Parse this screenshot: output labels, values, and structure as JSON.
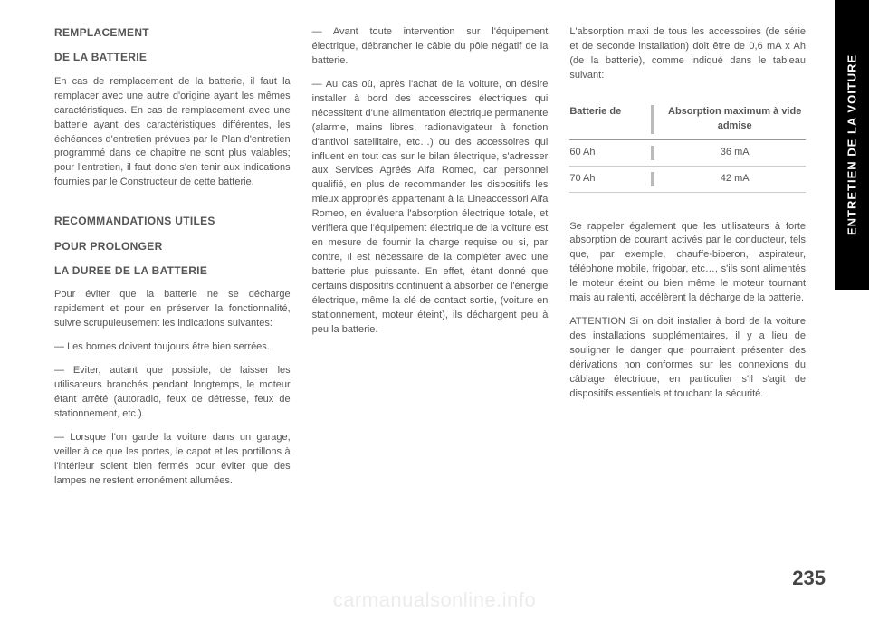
{
  "side_tab": "ENTRETIEN DE LA VOITURE",
  "page_number": "235",
  "watermark": "carmanualsonline.info",
  "colors": {
    "text": "#555555",
    "tab_bg": "#000000",
    "tab_fg": "#ffffff",
    "watermark": "rgba(0,0,0,0.08)",
    "rule": "#cccccc"
  },
  "col1": {
    "h1a": "REMPLACEMENT",
    "h1b": "DE LA BATTERIE",
    "p1": "En cas de remplacement de la batterie, il faut la remplacer avec une autre d'origine ayant les mêmes caractéristiques. En cas de remplacement avec une batterie ayant des caractéristiques différentes, les échéances d'entretien prévues par le Plan d'entretien programmé dans ce chapitre ne sont plus valables; pour l'entretien, il faut donc s'en tenir aux indications fournies par le Constructeur de cette batterie.",
    "h2a": "RECOMMANDATIONS UTILES",
    "h2b": "POUR PROLONGER",
    "h2c": "LA DUREE DE LA BATTERIE",
    "p2": "Pour éviter que la batterie ne se décharge rapidement et pour en préserver la fonctionnalité, suivre scrupuleusement les indications suivantes:",
    "p3": "Les bornes doivent toujours être bien serrées.",
    "p4": "Eviter, autant que possible, de laisser les utilisateurs branchés pendant longtemps, le moteur étant arrêté (autoradio, feux de détresse, feux de stationnement, etc.).",
    "p5": "Lorsque l'on garde la voiture dans un garage, veiller à ce que les portes, le capot et les portillons à l'intérieur soient bien fermés pour éviter que des lampes ne restent erronément allumées."
  },
  "col2": {
    "p1": "Avant toute intervention sur l'équipement électrique, débrancher le câble du pôle négatif de la batterie.",
    "p2": "Au cas où, après l'achat de la voiture, on désire installer à bord des accessoires électriques qui nécessitent d'une alimentation électrique permanente (alarme, mains libres, radionavigateur à fonction d'antivol satellitaire, etc…) ou des accessoires qui influent en tout cas sur le bilan électrique, s'adresser aux Services Agréés Alfa Romeo, car personnel qualifié, en plus de recommander les dispositifs les mieux appropriés appartenant à la Lineaccessori Alfa Romeo, en évaluera l'absorption électrique totale, et vérifiera que l'équipement électrique de la voiture est en mesure de fournir la charge requise ou si, par contre, il est nécessaire de la compléter avec une batterie plus puissante. En effet, étant donné que certains dispositifs continuent à absorber de l'énergie électrique, même la clé de contact sortie, (voiture en stationnement, moteur éteint), ils déchargent peu à peu la batterie."
  },
  "col3": {
    "p1": "L'absorption maxi de tous les accessoires (de série et de seconde installation) doit être de 0,6 mA x Ah (de la batterie), comme indiqué dans le tableau suivant:",
    "table": {
      "head_c1": "Batterie de",
      "head_c2": "Absorption maximum à vide admise",
      "rows": [
        {
          "c1": "60 Ah",
          "c2": "36 mA"
        },
        {
          "c1": "70 Ah",
          "c2": "42 mA"
        }
      ]
    },
    "p2": "Se rappeler également que les utilisateurs à forte absorption de courant activés par le conducteur, tels que, par exemple, chauffe-biberon, aspirateur, téléphone mobile, frigobar, etc…, s'ils sont alimentés le moteur éteint ou bien même le moteur tournant mais au ralenti, accélèrent la décharge de la batterie.",
    "p3": "ATTENTION Si on doit installer à bord de la voiture des installations supplémentaires, il y a lieu de souligner le danger que pourraient présenter des dérivations non conformes sur les connexions du câblage électrique, en particulier s'il s'agit de dispositifs essentiels et touchant la sécurité."
  }
}
